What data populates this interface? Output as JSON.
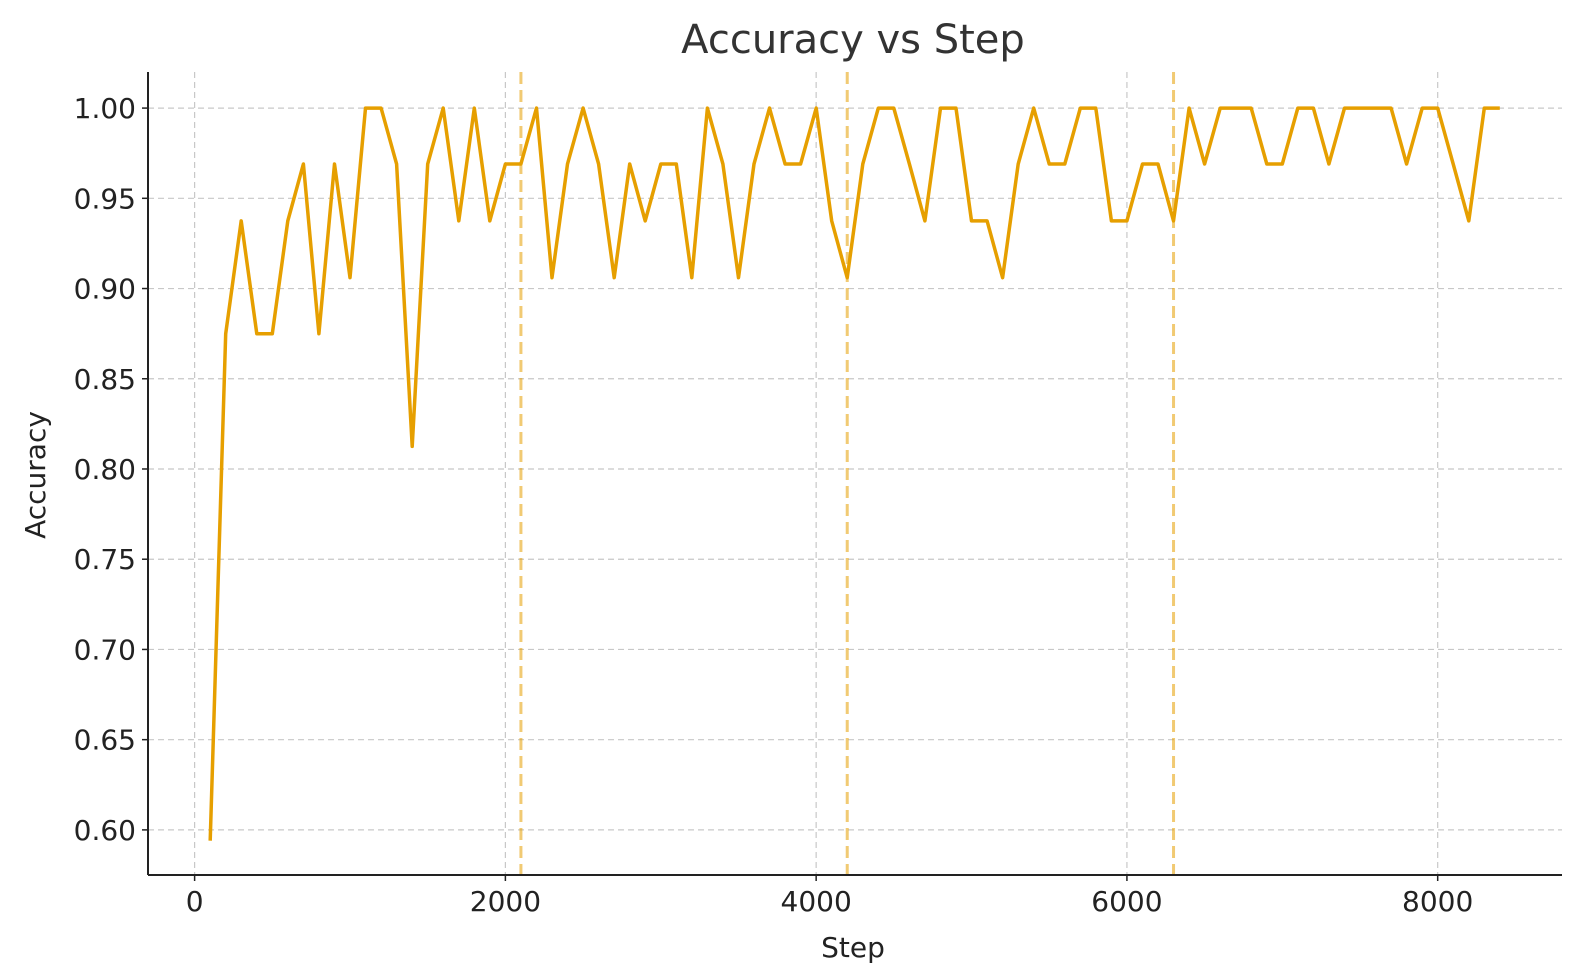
{
  "chart_data": {
    "type": "line",
    "title": "Accuracy vs Step",
    "xlabel": "Step",
    "ylabel": "Accuracy",
    "xlim": [
      -300,
      8800
    ],
    "ylim": [
      0.575,
      1.02
    ],
    "x_ticks": [
      0,
      2000,
      4000,
      6000,
      8000
    ],
    "y_ticks": [
      0.6,
      0.65,
      0.7,
      0.75,
      0.8,
      0.85,
      0.9,
      0.95,
      1.0
    ],
    "y_tick_labels": [
      "0.60",
      "0.65",
      "0.70",
      "0.75",
      "0.80",
      "0.85",
      "0.90",
      "0.95",
      "1.00"
    ],
    "grid": true,
    "line_color": "#E69F00",
    "reference_lines_x": [
      2100,
      4200,
      6300
    ],
    "series": [
      {
        "x": [
          100,
          200,
          300,
          400,
          500,
          600,
          700,
          800,
          900,
          1000,
          1100,
          1200,
          1300,
          1400,
          1500,
          1600,
          1700,
          1800,
          1900,
          2000,
          2100,
          2200,
          2300,
          2400,
          2500,
          2600,
          2700,
          2800,
          2900,
          3000,
          3100,
          3200,
          3300,
          3400,
          3500,
          3600,
          3700,
          3800,
          3900,
          4000,
          4100,
          4200,
          4300,
          4400,
          4500,
          4600,
          4700,
          4800,
          4900,
          5000,
          5100,
          5200,
          5300,
          5400,
          5500,
          5600,
          5700,
          5800,
          5900,
          6000,
          6100,
          6200,
          6300,
          6400,
          6500,
          6600,
          6700,
          6800,
          6900,
          7000,
          7100,
          7200,
          7300,
          7400,
          7500,
          7600,
          7700,
          7800,
          7900,
          8000,
          8100,
          8200,
          8300,
          8400
        ],
        "values": [
          0.594,
          0.875,
          0.9375,
          0.875,
          0.875,
          0.9375,
          0.969,
          0.875,
          0.969,
          0.906,
          1.0,
          1.0,
          0.969,
          0.8125,
          0.969,
          1.0,
          0.9375,
          1.0,
          0.9375,
          0.969,
          0.969,
          1.0,
          0.906,
          0.969,
          1.0,
          0.969,
          0.906,
          0.969,
          0.9375,
          0.969,
          0.969,
          0.906,
          1.0,
          0.969,
          0.906,
          0.969,
          1.0,
          0.969,
          0.969,
          1.0,
          0.9375,
          0.906,
          0.969,
          1.0,
          1.0,
          0.969,
          0.9375,
          1.0,
          1.0,
          0.9375,
          0.9375,
          0.906,
          0.969,
          1.0,
          0.969,
          0.969,
          1.0,
          1.0,
          0.9375,
          0.9375,
          0.969,
          0.969,
          0.9375,
          1.0,
          0.969,
          1.0,
          1.0,
          1.0,
          0.969,
          0.969,
          1.0,
          1.0,
          0.969,
          1.0,
          1.0,
          1.0,
          1.0,
          0.969,
          1.0,
          1.0,
          0.969,
          0.9375,
          1.0,
          1.0
        ]
      }
    ]
  }
}
